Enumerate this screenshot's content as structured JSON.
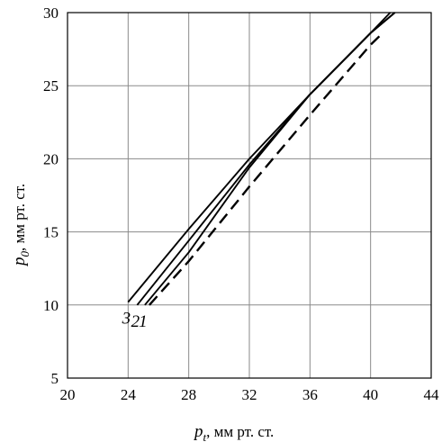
{
  "chart_data": {
    "type": "line",
    "xlabel": {
      "symbol": "p",
      "subscript": "t",
      "text": ", мм рт. ст."
    },
    "ylabel": {
      "symbol": "p",
      "subscript": "0",
      "text": ", мм рт. ст."
    },
    "xlim": [
      20,
      44
    ],
    "ylim": [
      5,
      30
    ],
    "xticks": [
      20,
      24,
      28,
      32,
      36,
      40,
      44
    ],
    "yticks": [
      5,
      10,
      15,
      20,
      25,
      30
    ],
    "grid": true,
    "series": [
      {
        "name": "3",
        "style": "solid",
        "x": [
          24.0,
          28.0,
          32.0,
          36.0,
          40.0,
          41.3
        ],
        "y": [
          10.2,
          15.2,
          20.0,
          24.4,
          28.6,
          30.0
        ]
      },
      {
        "name": "2",
        "style": "solid",
        "x": [
          24.6,
          28.0,
          32.0,
          36.0,
          40.0,
          41.6
        ],
        "y": [
          10.0,
          14.4,
          19.6,
          24.4,
          28.6,
          30.0
        ]
      },
      {
        "name": "1",
        "style": "solid",
        "x": [
          25.1,
          28.0,
          30.0,
          32.0,
          36.0,
          40.0,
          41.6
        ],
        "y": [
          10.0,
          13.6,
          16.5,
          19.4,
          24.4,
          28.6,
          30.0
        ]
      },
      {
        "name": "",
        "style": "dashed",
        "x": [
          25.4,
          28.0,
          32.0,
          36.0,
          40.0,
          40.8
        ],
        "y": [
          10.0,
          13.0,
          18.1,
          23.0,
          27.8,
          28.6
        ]
      }
    ],
    "curve_labels": [
      "3",
      "2",
      "1"
    ]
  }
}
